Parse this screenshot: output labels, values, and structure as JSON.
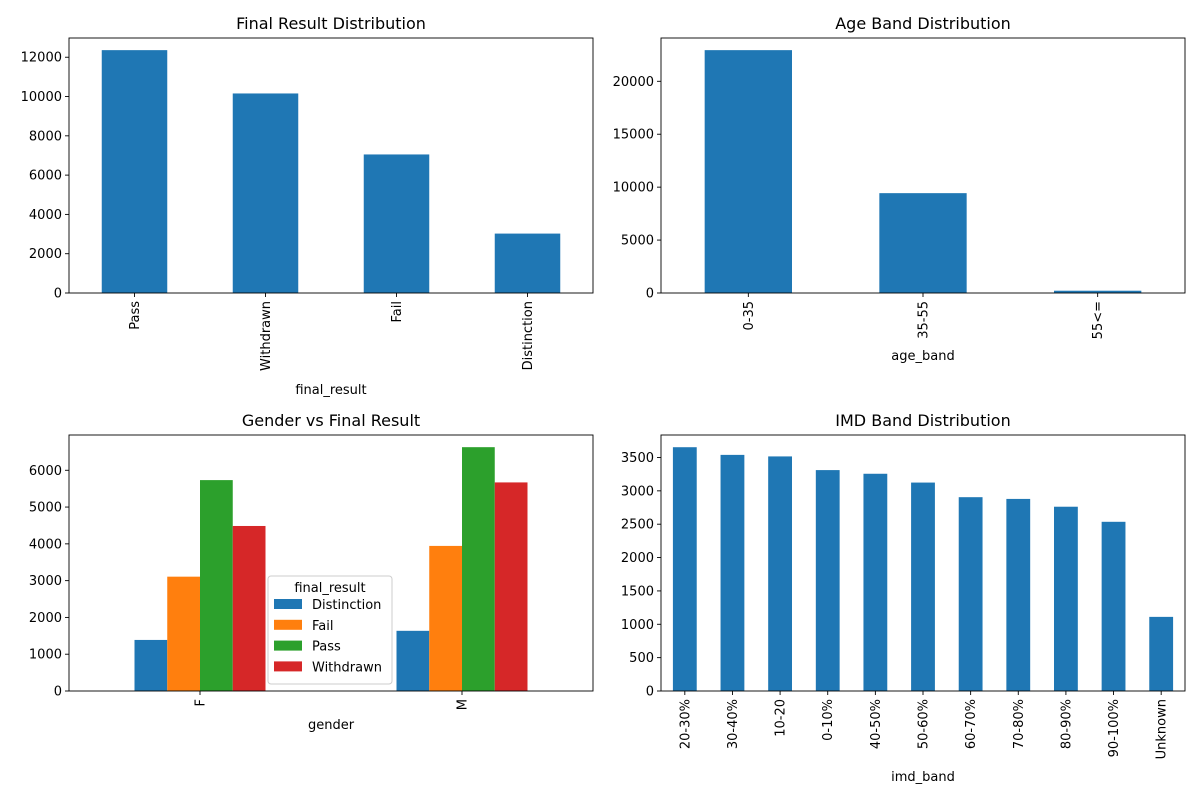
{
  "chart_data": [
    {
      "id": "final-result",
      "type": "bar",
      "title": "Final Result Distribution",
      "xlabel": "final_result",
      "ylabel": "",
      "categories": [
        "Pass",
        "Withdrawn",
        "Fail",
        "Distinction"
      ],
      "values": [
        12361,
        10156,
        7052,
        3024
      ],
      "ylim": [
        0,
        12979
      ],
      "yticks": [
        0,
        2000,
        4000,
        6000,
        8000,
        10000,
        12000
      ],
      "color": "#1f77b4",
      "xtick_rotation": 90,
      "grid": false
    },
    {
      "id": "age-band",
      "type": "bar",
      "title": "Age Band Distribution",
      "xlabel": "age_band",
      "ylabel": "",
      "categories": [
        "0-35",
        "35-55",
        "55<="
      ],
      "values": [
        22944,
        9433,
        216
      ],
      "ylim": [
        0,
        24091
      ],
      "yticks": [
        0,
        5000,
        10000,
        15000,
        20000
      ],
      "color": "#1f77b4",
      "xtick_rotation": 90,
      "grid": false
    },
    {
      "id": "gender-result",
      "type": "bar",
      "title": "Gender vs Final Result",
      "xlabel": "gender",
      "ylabel": "",
      "categories": [
        "F",
        "M"
      ],
      "series": [
        {
          "name": "Distinction",
          "values": [
            1388,
            1636
          ],
          "color": "#1f77b4"
        },
        {
          "name": "Fail",
          "values": [
            3108,
            3944
          ],
          "color": "#ff7f0e"
        },
        {
          "name": "Pass",
          "values": [
            5733,
            6628
          ],
          "color": "#2ca02c"
        },
        {
          "name": "Withdrawn",
          "values": [
            4486,
            5670
          ],
          "color": "#d62728"
        }
      ],
      "ylim": [
        0,
        6959
      ],
      "yticks": [
        0,
        1000,
        2000,
        3000,
        4000,
        5000,
        6000
      ],
      "legend": {
        "title": "final_result",
        "placement": "lower center"
      },
      "xtick_rotation": 90,
      "grid": false
    },
    {
      "id": "imd-band",
      "type": "bar",
      "title": "IMD Band Distribution",
      "xlabel": "imd_band",
      "ylabel": "",
      "categories": [
        "20-30%",
        "30-40%",
        "10-20",
        "0-10%",
        "40-50%",
        "50-60%",
        "60-70%",
        "70-80%",
        "80-90%",
        "90-100%",
        "Unknown"
      ],
      "values": [
        3654,
        3539,
        3516,
        3311,
        3256,
        3124,
        2905,
        2879,
        2762,
        2536,
        1111
      ],
      "ylim": [
        0,
        3837
      ],
      "yticks": [
        0,
        500,
        1000,
        1500,
        2000,
        2500,
        3000,
        3500
      ],
      "color": "#1f77b4",
      "xtick_rotation": 90,
      "grid": false
    }
  ]
}
